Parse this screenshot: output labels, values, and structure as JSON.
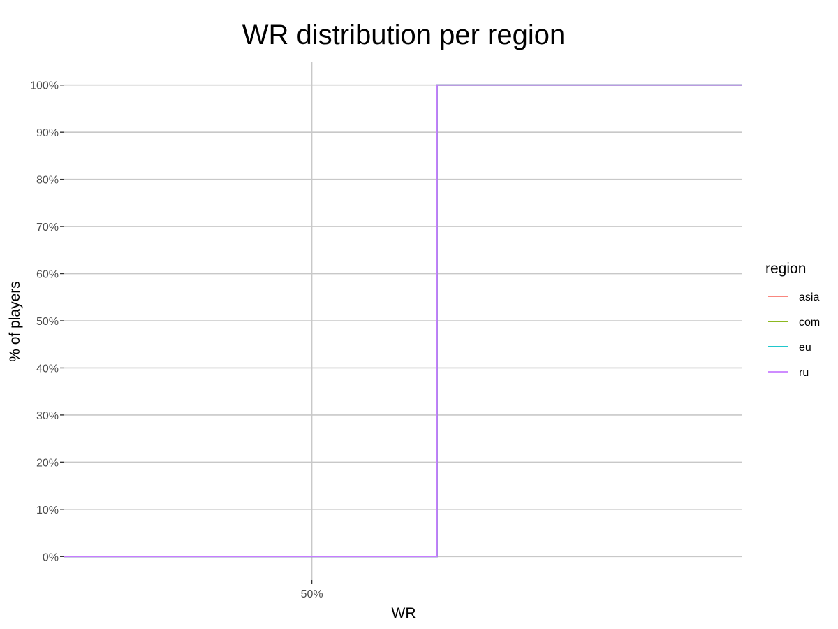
{
  "chart_data": {
    "type": "line",
    "title": "WR distribution per region",
    "xlabel": "WR",
    "ylabel": "% of players",
    "x_ticks": [
      {
        "value": 0.5,
        "label": "50%"
      }
    ],
    "y_ticks": [
      {
        "value": 0.0,
        "label": "0%"
      },
      {
        "value": 0.1,
        "label": "10%"
      },
      {
        "value": 0.2,
        "label": "20%"
      },
      {
        "value": 0.3,
        "label": "30%"
      },
      {
        "value": 0.4,
        "label": "40%"
      },
      {
        "value": 0.5,
        "label": "50%"
      },
      {
        "value": 0.6,
        "label": "60%"
      },
      {
        "value": 0.7,
        "label": "70%"
      },
      {
        "value": 0.8,
        "label": "80%"
      },
      {
        "value": 0.9,
        "label": "90%"
      },
      {
        "value": 1.0,
        "label": "100%"
      }
    ],
    "xlim": [
      0.413,
      0.651
    ],
    "ylim": [
      -0.05,
      1.05
    ],
    "grid": true,
    "legend": {
      "title": "region",
      "position": "right"
    },
    "series": [
      {
        "name": "asia",
        "color": "#F8766D",
        "step": true,
        "points": [
          [
            0.413,
            0.0
          ],
          [
            0.544,
            0.0
          ],
          [
            0.544,
            1.0
          ],
          [
            0.651,
            1.0
          ]
        ]
      },
      {
        "name": "com",
        "color": "#7CAE00",
        "step": true,
        "points": [
          [
            0.413,
            0.0
          ],
          [
            0.544,
            0.0
          ],
          [
            0.544,
            1.0
          ],
          [
            0.651,
            1.0
          ]
        ]
      },
      {
        "name": "eu",
        "color": "#00BFC4",
        "step": true,
        "points": [
          [
            0.413,
            0.0
          ],
          [
            0.544,
            0.0
          ],
          [
            0.544,
            1.0
          ],
          [
            0.651,
            1.0
          ]
        ]
      },
      {
        "name": "ru",
        "color": "#C77CFF",
        "step": true,
        "points": [
          [
            0.413,
            0.0
          ],
          [
            0.544,
            0.0
          ],
          [
            0.544,
            1.0
          ],
          [
            0.651,
            1.0
          ]
        ]
      }
    ]
  }
}
